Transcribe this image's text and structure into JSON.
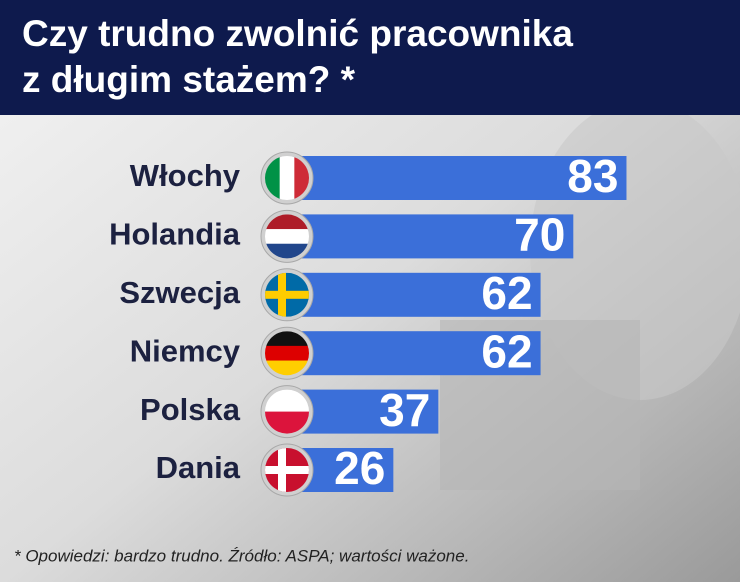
{
  "chart_data": {
    "type": "bar",
    "title": [
      "Czy trudno zwolnić pracownika",
      "z długim stażem? *"
    ],
    "categories": [
      "Włochy",
      "Holandia",
      "Szwecja",
      "Niemcy",
      "Polska",
      "Dania"
    ],
    "values": [
      83,
      70,
      62,
      62,
      37,
      26
    ],
    "color": "#3b6fd9",
    "note": "* Opowiedzi: bardzo trudno. Źródło: ASPA; wartości ważone."
  }
}
